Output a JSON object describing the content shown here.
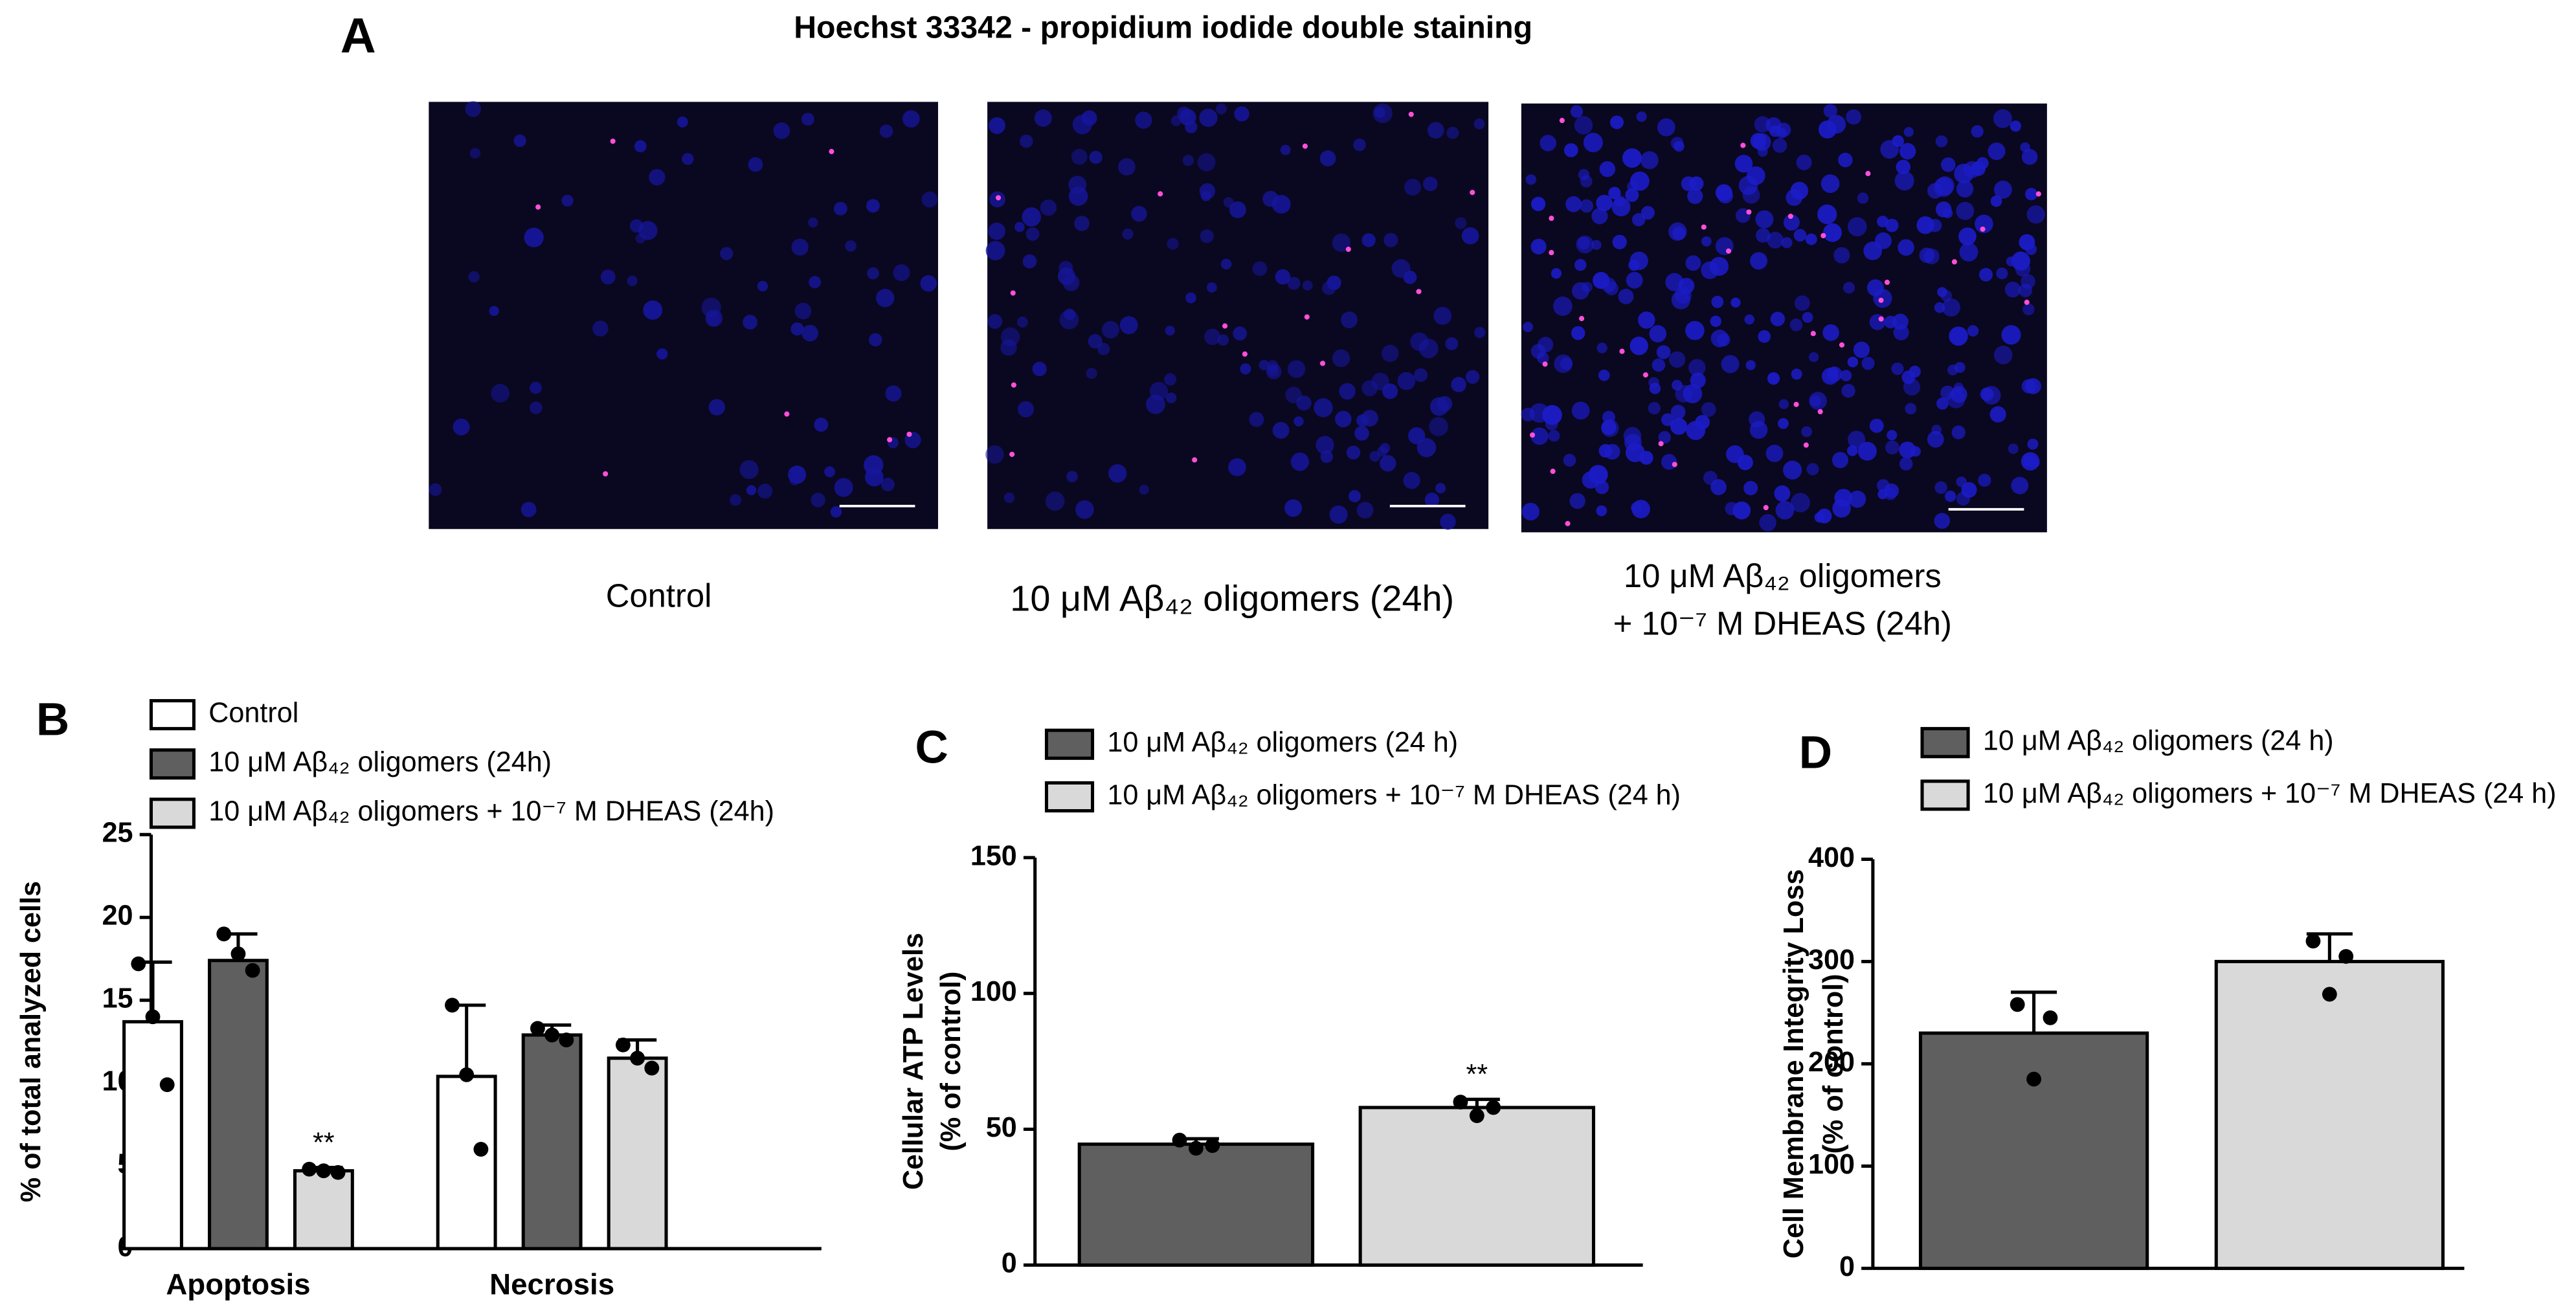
{
  "panel_a": {
    "letter": "A",
    "title": "Hoechst 33342 - propidium iodide double staining",
    "captions": [
      "Control",
      "10 μM Aβ₄₂ oligomers (24h)",
      [
        "10 μM Aβ₄₂ oligomers",
        "+ 10⁻⁷ M DHEAS (24h)"
      ]
    ]
  },
  "chart_data": [
    {
      "type": "bar",
      "letter": "B",
      "y_label": "% of total analyzed cells",
      "categories": [
        "Apoptosis",
        "Necrosis"
      ],
      "series": [
        {
          "name": "Control",
          "color": "#ffffff",
          "values": [
            13.7,
            10.4
          ],
          "errors": [
            3.6,
            4.3
          ],
          "points": [
            [
              17.2,
              14.0,
              9.9
            ],
            [
              14.7,
              10.5,
              6.0
            ]
          ],
          "significance": [
            null,
            null
          ]
        },
        {
          "name": "10 μM Aβ₄₂ oligomers (24h)",
          "color": "#5f5f5f",
          "values": [
            17.4,
            12.9
          ],
          "errors": [
            1.6,
            0.6
          ],
          "points": [
            [
              19.0,
              17.8,
              16.8
            ],
            [
              13.3,
              12.9,
              12.6
            ]
          ],
          "significance": [
            null,
            null
          ]
        },
        {
          "name": "10 μM Aβ₄₂ oligomers + 10⁻⁷ M DHEAS (24h)",
          "color": "#d9d9d9",
          "values": [
            4.7,
            11.5
          ],
          "errors": [
            0.2,
            1.1
          ],
          "points": [
            [
              4.8,
              4.7,
              4.6
            ],
            [
              12.3,
              11.5,
              10.9
            ]
          ],
          "significance": [
            "**",
            null
          ]
        }
      ],
      "ylim": [
        0,
        25
      ],
      "yticks": [
        0,
        5,
        10,
        15,
        20,
        25
      ]
    },
    {
      "type": "bar",
      "letter": "C",
      "y_label": [
        "Cellular ATP Levels",
        "(% of control)"
      ],
      "categories": [
        null
      ],
      "series": [
        {
          "name": "10 μM Aβ₄₂ oligomers (24 h)",
          "color": "#5f5f5f",
          "values": [
            44.5
          ],
          "errors": [
            2
          ],
          "points": [
            [
              46,
              43,
              44
            ]
          ],
          "significance": [
            null
          ]
        },
        {
          "name": "10 μM Aβ₄₂ oligomers + 10⁻⁷ M DHEAS (24 h)",
          "color": "#d9d9d9",
          "values": [
            58
          ],
          "errors": [
            3
          ],
          "points": [
            [
              60,
              55,
              58
            ]
          ],
          "significance": [
            "**"
          ]
        }
      ],
      "ylim": [
        0,
        150
      ],
      "yticks": [
        0,
        50,
        100,
        150
      ]
    },
    {
      "type": "bar",
      "letter": "D",
      "y_label": [
        "Cell Membrane Integrity Loss",
        "(% of control)"
      ],
      "categories": [
        null
      ],
      "series": [
        {
          "name": "10 μM Aβ₄₂ oligomers (24 h)",
          "color": "#5f5f5f",
          "values": [
            230
          ],
          "errors": [
            40
          ],
          "points": [
            [
              258,
              185,
              245
            ]
          ],
          "significance": [
            null
          ]
        },
        {
          "name": "10 μM Aβ₄₂ oligomers + 10⁻⁷ M DHEAS (24 h)",
          "color": "#d9d9d9",
          "values": [
            300
          ],
          "errors": [
            27
          ],
          "points": [
            [
              320,
              268,
              305
            ]
          ],
          "significance": [
            null
          ]
        }
      ],
      "ylim": [
        0,
        400
      ],
      "yticks": [
        0,
        100,
        200,
        300,
        400
      ]
    }
  ]
}
